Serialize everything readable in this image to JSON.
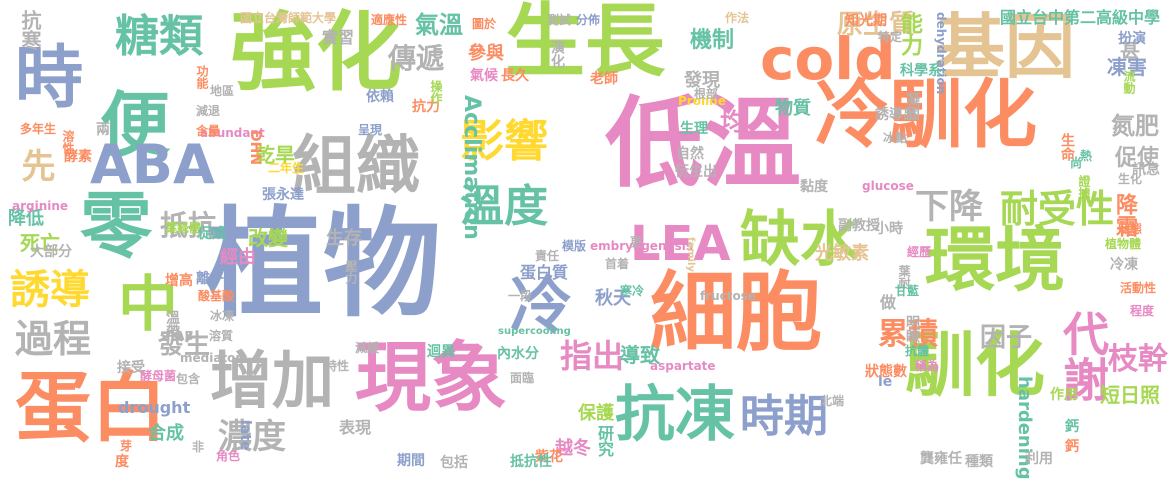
{
  "palette": {
    "green": "#a6d854",
    "orange": "#fc8d62",
    "teal": "#66c2a5",
    "blue": "#8da0cb",
    "pink": "#e78ac3",
    "yellow": "#ffd92f",
    "tan": "#e5c494",
    "gray": "#b3b3b3"
  },
  "words": [
    {
      "text": "植物",
      "color": "blue"
    },
    {
      "text": "低溫",
      "color": "pink"
    },
    {
      "text": "強化",
      "color": "green"
    },
    {
      "text": "生長",
      "color": "green"
    },
    {
      "text": "冷馴化",
      "color": "orange"
    },
    {
      "text": "細胞",
      "color": "orange"
    },
    {
      "text": "基因",
      "color": "tan"
    },
    {
      "text": "cold",
      "color": "orange"
    },
    {
      "text": "時",
      "color": "blue"
    },
    {
      "text": "便",
      "color": "teal"
    },
    {
      "text": "ABA",
      "color": "blue"
    },
    {
      "text": "組織",
      "color": "gray"
    },
    {
      "text": "蛋白",
      "color": "orange"
    },
    {
      "text": "現象",
      "color": "pink"
    },
    {
      "text": "環境",
      "color": "green"
    },
    {
      "text": "馴化",
      "color": "green"
    },
    {
      "text": "缺水",
      "color": "green"
    },
    {
      "text": "抗凍",
      "color": "teal"
    },
    {
      "text": "增加",
      "color": "gray"
    },
    {
      "text": "零",
      "color": "teal"
    },
    {
      "text": "中",
      "color": "green"
    },
    {
      "text": "冷",
      "color": "blue"
    },
    {
      "text": "LEA",
      "color": "pink"
    },
    {
      "text": "糖類",
      "color": "teal"
    },
    {
      "text": "影響",
      "color": "yellow"
    },
    {
      "text": "溫度",
      "color": "teal"
    },
    {
      "text": "時期",
      "color": "blue"
    },
    {
      "text": "過程",
      "color": "gray"
    },
    {
      "text": "誘導",
      "color": "yellow"
    },
    {
      "text": "先",
      "color": "tan"
    },
    {
      "text": "代謝",
      "color": "pink"
    },
    {
      "text": "耐受性",
      "color": "green"
    },
    {
      "text": "下降",
      "color": "gray"
    },
    {
      "text": "累積",
      "color": "orange"
    },
    {
      "text": "指出",
      "color": "pink"
    },
    {
      "text": "濃度",
      "color": "gray"
    },
    {
      "text": "機制",
      "color": "teal"
    },
    {
      "text": "Acclimation",
      "color": "teal"
    },
    {
      "text": "原生質",
      "color": "tan"
    },
    {
      "text": "氣溫",
      "color": "teal"
    },
    {
      "text": "能力",
      "color": "green"
    },
    {
      "text": "凍害",
      "color": "blue"
    },
    {
      "text": "枝幹",
      "color": "pink"
    },
    {
      "text": "抵抗",
      "color": "gray"
    },
    {
      "text": "發生",
      "color": "gray"
    },
    {
      "text": "死亡",
      "color": "green"
    },
    {
      "text": "抗寒",
      "color": "gray"
    },
    {
      "text": "參與",
      "color": "orange"
    },
    {
      "text": "傳遞",
      "color": "gray"
    },
    {
      "text": "均",
      "color": "pink"
    },
    {
      "text": "乾旱",
      "color": "green"
    },
    {
      "text": "物質",
      "color": "teal"
    },
    {
      "text": "光敏素",
      "color": "tan"
    },
    {
      "text": "因子",
      "color": "gray"
    },
    {
      "text": "降霜",
      "color": "orange"
    },
    {
      "text": "短日照",
      "color": "green"
    },
    {
      "text": "hardening",
      "color": "teal"
    },
    {
      "text": "蛋白質",
      "color": "blue"
    },
    {
      "text": "秋天",
      "color": "blue"
    },
    {
      "text": "保護",
      "color": "green"
    },
    {
      "text": "越冬",
      "color": "pink"
    },
    {
      "text": "研究",
      "color": "teal"
    },
    {
      "text": "導致",
      "color": "teal"
    },
    {
      "text": "表現",
      "color": "gray"
    },
    {
      "text": "合成",
      "color": "teal"
    },
    {
      "text": "改變",
      "color": "green"
    },
    {
      "text": "生存",
      "color": "gray"
    },
    {
      "text": "降低",
      "color": "teal"
    },
    {
      "text": "經由",
      "color": "pink"
    },
    {
      "text": "發現",
      "color": "gray"
    },
    {
      "text": "氮肥",
      "color": "gray"
    },
    {
      "text": "甚",
      "color": "gray"
    },
    {
      "text": "促使",
      "color": "gray"
    },
    {
      "text": "生理",
      "color": "teal"
    },
    {
      "text": "le",
      "color": "blue"
    },
    {
      "text": "做",
      "color": "gray"
    },
    {
      "text": "兩",
      "color": "gray"
    },
    {
      "text": "國立台中第二高級中學",
      "color": "teal"
    },
    {
      "text": "國立台灣師範大學",
      "color": "tan"
    },
    {
      "text": "dehydration",
      "color": "blue"
    },
    {
      "text": "實習",
      "color": "gray"
    },
    {
      "text": "依賴",
      "color": "blue"
    },
    {
      "text": "老師",
      "color": "orange"
    },
    {
      "text": "抗力",
      "color": "orange"
    },
    {
      "text": "作法",
      "color": "tan"
    },
    {
      "text": "知光期",
      "color": "orange"
    },
    {
      "text": "科學系",
      "color": "teal"
    },
    {
      "text": "扮演",
      "color": "blue"
    },
    {
      "text": "流動",
      "color": "green"
    },
    {
      "text": "凝固",
      "color": "gray"
    },
    {
      "text": "誘導出",
      "color": "gray"
    },
    {
      "text": "冰點",
      "color": "gray"
    },
    {
      "text": "證據",
      "color": "green"
    },
    {
      "text": "訊息",
      "color": "gray"
    },
    {
      "text": "生化",
      "color": "gray"
    },
    {
      "text": "黏度",
      "color": "gray"
    },
    {
      "text": "狀態",
      "color": "orange"
    },
    {
      "text": "狀態數",
      "color": "orange"
    },
    {
      "text": "副教授",
      "color": "gray"
    },
    {
      "text": "小時",
      "color": "gray"
    },
    {
      "text": "經歷",
      "color": "pink"
    },
    {
      "text": "葉耐",
      "color": "gray"
    },
    {
      "text": "甘藍",
      "color": "teal"
    },
    {
      "text": "植物體",
      "color": "green"
    },
    {
      "text": "冷凍",
      "color": "gray"
    },
    {
      "text": "活動性",
      "color": "orange"
    },
    {
      "text": "程度",
      "color": "pink"
    },
    {
      "text": "明瞭",
      "color": "gray"
    },
    {
      "text": "稱為",
      "color": "pink"
    },
    {
      "text": "抗體",
      "color": "teal"
    },
    {
      "text": "作用",
      "color": "green"
    },
    {
      "text": "鈣",
      "color": "teal"
    },
    {
      "text": "利用",
      "color": "gray"
    },
    {
      "text": "龔雍任",
      "color": "gray"
    },
    {
      "text": "種類",
      "color": "gray"
    },
    {
      "text": "embryogenesis",
      "color": "pink"
    },
    {
      "text": "Proline",
      "color": "yellow"
    },
    {
      "text": "glucose",
      "color": "pink"
    },
    {
      "text": "fructose",
      "color": "gray"
    },
    {
      "text": "family",
      "color": "tan"
    },
    {
      "text": "aspartate",
      "color": "pink"
    },
    {
      "text": "supercooling",
      "color": "teal"
    },
    {
      "text": "abundant",
      "color": "pink"
    },
    {
      "text": "arginine",
      "color": "pink"
    },
    {
      "text": "mediator",
      "color": "gray"
    },
    {
      "text": "drought",
      "color": "blue"
    },
    {
      "text": "late",
      "color": "blue"
    },
    {
      "text": "DHN",
      "color": "orange"
    },
    {
      "text": "RAB",
      "color": "gray"
    },
    {
      "text": "張永達",
      "color": "blue"
    },
    {
      "text": "紫花",
      "color": "orange"
    },
    {
      "text": "抵抗性",
      "color": "teal"
    },
    {
      "text": "包括",
      "color": "gray"
    },
    {
      "text": "期間",
      "color": "blue"
    },
    {
      "text": "角色",
      "color": "pink"
    },
    {
      "text": "非",
      "color": "gray"
    },
    {
      "text": "包含",
      "color": "gray"
    },
    {
      "text": "酵母菌",
      "color": "pink"
    },
    {
      "text": "接受",
      "color": "gray"
    },
    {
      "text": "溶質",
      "color": "gray"
    },
    {
      "text": "冰凍",
      "color": "gray"
    },
    {
      "text": "溫帶",
      "color": "gray"
    },
    {
      "text": "增高",
      "color": "orange"
    },
    {
      "text": "大部分",
      "color": "gray"
    },
    {
      "text": "離子",
      "color": "blue"
    },
    {
      "text": "葉綠體",
      "color": "green"
    },
    {
      "text": "促成",
      "color": "teal"
    },
    {
      "text": "酸基酸",
      "color": "orange"
    },
    {
      "text": "壓力",
      "color": "gray"
    },
    {
      "text": "特性",
      "color": "gray"
    },
    {
      "text": "減緩",
      "color": "gray"
    },
    {
      "text": "迴異",
      "color": "teal"
    },
    {
      "text": "內水分",
      "color": "teal"
    },
    {
      "text": "面臨",
      "color": "gray"
    },
    {
      "text": "一段",
      "color": "gray"
    },
    {
      "text": "責任",
      "color": "gray"
    },
    {
      "text": "模版",
      "color": "blue"
    },
    {
      "text": "首着",
      "color": "gray"
    },
    {
      "text": "更",
      "color": "gray"
    },
    {
      "text": "寒冷",
      "color": "teal"
    },
    {
      "text": "衍生出",
      "color": "gray"
    },
    {
      "text": "自然",
      "color": "gray"
    },
    {
      "text": "氣候",
      "color": "pink"
    },
    {
      "text": "長久",
      "color": "orange"
    },
    {
      "text": "操作",
      "color": "green"
    },
    {
      "text": "演化",
      "color": "gray"
    },
    {
      "text": "適應性",
      "color": "orange"
    },
    {
      "text": "圖於",
      "color": "orange"
    },
    {
      "text": "測試",
      "color": "gray"
    },
    {
      "text": "分佈",
      "color": "blue"
    },
    {
      "text": "功能",
      "color": "orange"
    },
    {
      "text": "地區",
      "color": "gray"
    },
    {
      "text": "減退",
      "color": "gray"
    },
    {
      "text": "含量",
      "color": "orange"
    },
    {
      "text": "酵素",
      "color": "orange"
    },
    {
      "text": "溶性",
      "color": "orange"
    },
    {
      "text": "多年生",
      "color": "orange"
    },
    {
      "text": "二年生",
      "color": "yellow"
    },
    {
      "text": "呈現",
      "color": "blue"
    },
    {
      "text": "根部",
      "color": "gray"
    },
    {
      "text": "特定",
      "color": "gray"
    },
    {
      "text": "熱",
      "color": "teal"
    },
    {
      "text": "尚",
      "color": "teal"
    },
    {
      "text": "生命",
      "color": "orange"
    },
    {
      "text": "度",
      "color": "orange"
    },
    {
      "text": "鈣",
      "color": "orange"
    },
    {
      "text": "芽",
      "color": "orange"
    },
    {
      "text": "北端",
      "color": "gray"
    }
  ]
}
